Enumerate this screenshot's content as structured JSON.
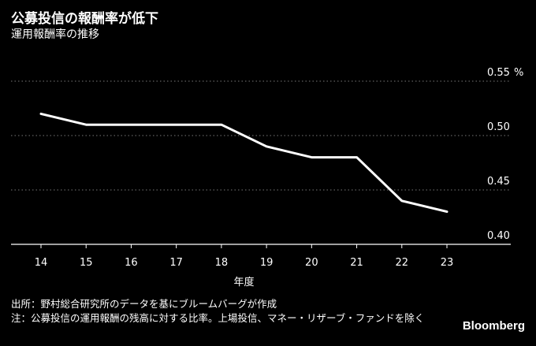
{
  "header": {
    "title": "公募投信の報酬率が低下",
    "subtitle": "運用報酬率の推移"
  },
  "footer": {
    "source": "出所：野村総合研究所のデータを基にブルームバーグが作成",
    "note": "注：公募投信の運用報酬の残高に対する比率。上場投信、マネー・リザーブ・ファンドを除く",
    "brand": "Bloomberg"
  },
  "colors": {
    "background": "#000000",
    "line": "#ffffff",
    "grid": "#777777",
    "text": "#ffffff"
  },
  "chart_data": {
    "type": "line",
    "title": "公募投信の報酬率が低下",
    "subtitle": "運用報酬率の推移",
    "xlabel": "年度",
    "ylabel": "",
    "y_unit": "%",
    "x": [
      "14",
      "15",
      "16",
      "17",
      "18",
      "19",
      "20",
      "21",
      "22",
      "23"
    ],
    "series": [
      {
        "values": [
          0.52,
          0.51,
          0.51,
          0.51,
          0.51,
          0.49,
          0.48,
          0.48,
          0.44,
          0.43
        ]
      }
    ],
    "yticks": [
      "0.40",
      "0.45",
      "0.50",
      "0.55"
    ],
    "ylim": [
      0.4,
      0.55
    ],
    "grid": "horizontal-dotted",
    "y_axis_side": "right"
  }
}
